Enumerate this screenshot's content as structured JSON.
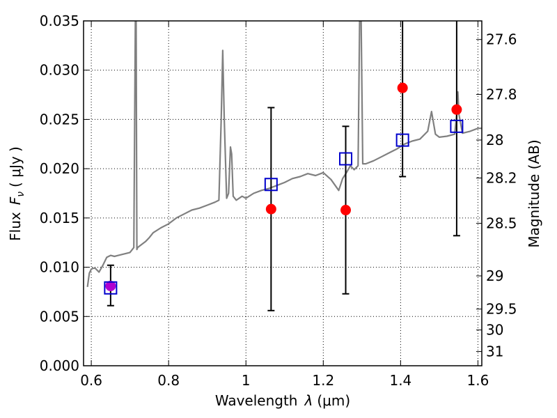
{
  "chart_data": {
    "type": "line",
    "title": "",
    "xlabel_prefix": "Wavelength",
    "xlabel_symbol": "λ",
    "xlabel_unit": "(μm)",
    "ylabel_prefix": "Flux",
    "ylabel_symbol": "F",
    "ylabel_subscript": "ν",
    "ylabel_unit": "( μJy )",
    "ylabel_right": "Magnitude (AB)",
    "xlim": [
      0.58,
      1.61
    ],
    "ylim": [
      0.0,
      0.035
    ],
    "xticks": [
      0.6,
      0.8,
      1.0,
      1.2,
      1.4,
      1.6
    ],
    "xtick_labels": [
      "0.6",
      "0.8",
      "1",
      "1.2",
      "1.4",
      "1.6"
    ],
    "yticks": [
      0.0,
      0.005,
      0.01,
      0.015,
      0.02,
      0.025,
      0.03,
      0.035
    ],
    "ytick_labels": [
      "0.000",
      "0.005",
      "0.010",
      "0.015",
      "0.020",
      "0.025",
      "0.030",
      "0.035"
    ],
    "mag_ticks": [
      27.6,
      27.8,
      28,
      28.2,
      28.5,
      29,
      29.5,
      30,
      31
    ],
    "mag_tick_labels": [
      "27.6",
      "27.8",
      "28",
      "28.2",
      "28.5",
      "29",
      "29.5",
      "30",
      "31"
    ],
    "grid": true,
    "colors": {
      "spectrum": "#808080",
      "observed": "#ff0000",
      "observed_blend": "#b000d0",
      "model": "#0000cc",
      "errorbar": "#000000"
    },
    "series": [
      {
        "name": "model spectrum",
        "kind": "line",
        "x": [
          0.59,
          0.595,
          0.6,
          0.605,
          0.61,
          0.62,
          0.63,
          0.64,
          0.65,
          0.66,
          0.67,
          0.68,
          0.69,
          0.7,
          0.71,
          0.714,
          0.716,
          0.718,
          0.72,
          0.73,
          0.74,
          0.75,
          0.76,
          0.78,
          0.8,
          0.82,
          0.84,
          0.86,
          0.88,
          0.9,
          0.92,
          0.93,
          0.936,
          0.94,
          0.944,
          0.95,
          0.955,
          0.96,
          0.963,
          0.967,
          0.975,
          0.99,
          1.0,
          1.02,
          1.04,
          1.06,
          1.08,
          1.1,
          1.12,
          1.14,
          1.16,
          1.18,
          1.2,
          1.22,
          1.24,
          1.25,
          1.26,
          1.27,
          1.28,
          1.29,
          1.294,
          1.298,
          1.302,
          1.31,
          1.33,
          1.35,
          1.37,
          1.39,
          1.41,
          1.43,
          1.45,
          1.47,
          1.48,
          1.49,
          1.5,
          1.52,
          1.54,
          1.545,
          1.548,
          1.551,
          1.56,
          1.58,
          1.6,
          1.61
        ],
        "y": [
          0.008,
          0.0094,
          0.0098,
          0.0099,
          0.0099,
          0.0095,
          0.0102,
          0.011,
          0.0112,
          0.0111,
          0.0112,
          0.0113,
          0.0114,
          0.0115,
          0.012,
          0.035,
          0.035,
          0.0118,
          0.012,
          0.0123,
          0.0126,
          0.013,
          0.0135,
          0.014,
          0.0144,
          0.015,
          0.0154,
          0.0158,
          0.016,
          0.0163,
          0.0166,
          0.0168,
          0.025,
          0.032,
          0.025,
          0.017,
          0.0175,
          0.0222,
          0.0215,
          0.0172,
          0.0168,
          0.0172,
          0.017,
          0.0175,
          0.0178,
          0.018,
          0.0183,
          0.0186,
          0.019,
          0.0192,
          0.0195,
          0.0193,
          0.0196,
          0.0189,
          0.0178,
          0.019,
          0.0196,
          0.0203,
          0.0199,
          0.0203,
          0.035,
          0.035,
          0.0205,
          0.0205,
          0.0208,
          0.0212,
          0.0216,
          0.022,
          0.0225,
          0.0228,
          0.023,
          0.0238,
          0.0258,
          0.0235,
          0.0232,
          0.0233,
          0.0235,
          0.0255,
          0.0278,
          0.0255,
          0.0236,
          0.0238,
          0.0241,
          0.0241
        ]
      },
      {
        "name": "observed photometry",
        "kind": "points",
        "x": [
          0.65,
          1.065,
          1.258,
          1.405,
          1.545
        ],
        "y": [
          0.0081,
          0.0159,
          0.0158,
          0.0282,
          0.026
        ],
        "err_lo": [
          0.0061,
          0.0056,
          0.0073,
          0.0192,
          0.0132
        ],
        "err_hi": [
          0.0102,
          0.0262,
          0.0243,
          0.035,
          0.035
        ]
      },
      {
        "name": "model photometry",
        "kind": "squares",
        "x": [
          0.65,
          1.065,
          1.258,
          1.405,
          1.545
        ],
        "y": [
          0.0079,
          0.0184,
          0.021,
          0.0229,
          0.0243
        ]
      }
    ]
  }
}
